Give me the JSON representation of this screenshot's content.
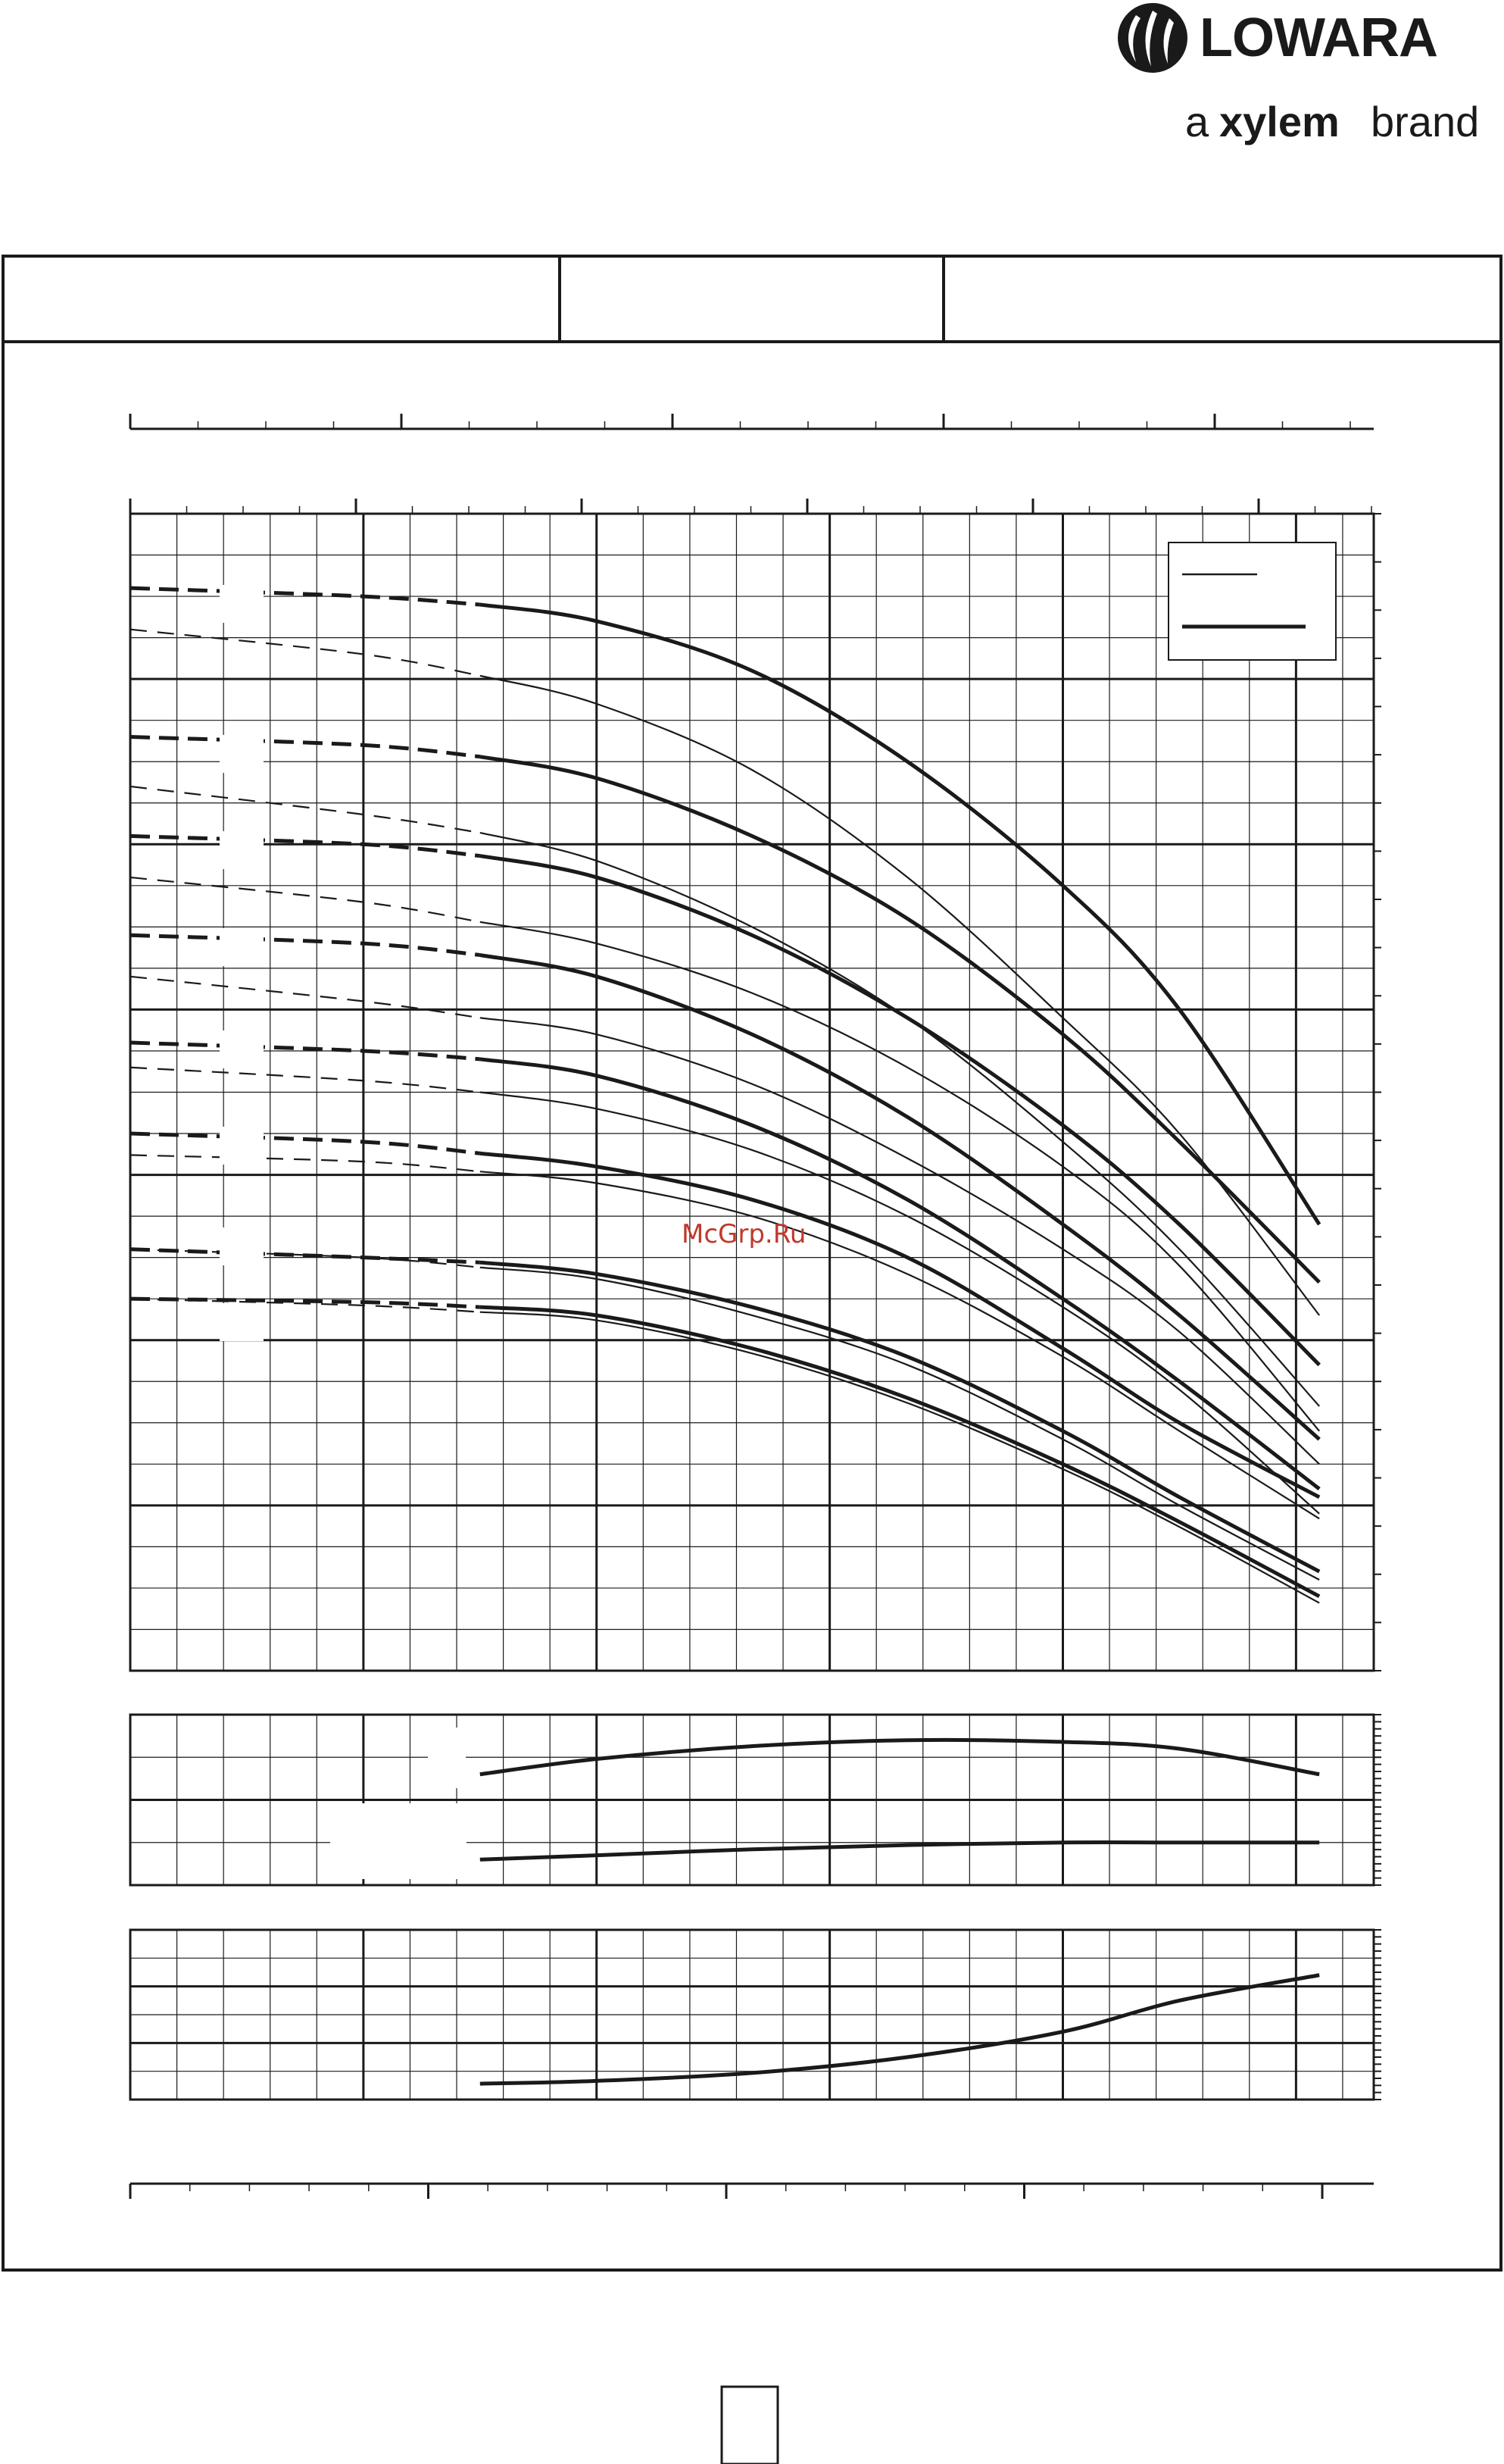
{
  "brand": {
    "name": "LOWARA",
    "tagline_prefix": "a",
    "tagline_brand": "xylem",
    "tagline_suffix": "brand"
  },
  "watermark": "McGrp.Ru",
  "colors": {
    "ink": "#1a1a1a",
    "watermark": "#c0392b",
    "paper": "#ffffff"
  },
  "chart_data": [
    {
      "type": "line",
      "title": "",
      "xlabel": "",
      "ylabel": "",
      "xlim": [
        0,
        16
      ],
      "ylim": [
        0,
        70
      ],
      "grid": true,
      "legend": "top-right",
      "series": [
        {
          "style": "bold",
          "x": [
            0,
            3,
            4.5,
            6,
            8,
            10,
            12,
            13.5,
            15.3
          ],
          "y": [
            65.5,
            65,
            64.5,
            63.5,
            60.5,
            55,
            47.5,
            40,
            27
          ]
        },
        {
          "style": "thin",
          "x": [
            0,
            3,
            4.5,
            6,
            8,
            10,
            12,
            13.5,
            15.3
          ],
          "y": [
            63,
            61.5,
            60.2,
            58.5,
            54.5,
            48,
            39.5,
            32.5,
            21.5
          ]
        },
        {
          "style": "bold",
          "x": [
            0,
            3,
            4.5,
            6,
            8,
            10,
            12,
            13.5,
            15.3
          ],
          "y": [
            56.5,
            56,
            55.3,
            54,
            50.5,
            45.5,
            38.5,
            32,
            23.5
          ]
        },
        {
          "style": "thin",
          "x": [
            0,
            3,
            4.5,
            6,
            8,
            10,
            12,
            13.5,
            15.3
          ],
          "y": [
            53.5,
            51.8,
            50.7,
            49,
            45,
            39.5,
            32,
            25.5,
            16
          ]
        },
        {
          "style": "bold",
          "x": [
            0,
            3,
            4.5,
            6,
            8,
            10,
            12,
            13.5,
            15.3
          ],
          "y": [
            50.5,
            50,
            49.3,
            48,
            44.5,
            39.5,
            33,
            27,
            18.5
          ]
        },
        {
          "style": "thin",
          "x": [
            0,
            3,
            4.5,
            6,
            8,
            10,
            12,
            13.5,
            15.3
          ],
          "y": [
            48,
            46.5,
            45.3,
            44,
            41,
            36.5,
            30.5,
            24.5,
            14.5
          ]
        },
        {
          "style": "bold",
          "x": [
            0,
            3,
            4.5,
            6,
            8,
            10,
            12,
            13.5,
            15.3
          ],
          "y": [
            44.5,
            44,
            43.3,
            42,
            38.5,
            33.5,
            27,
            21.5,
            14
          ]
        },
        {
          "style": "thin",
          "x": [
            0,
            3,
            4.5,
            6,
            8,
            10,
            12,
            13.5,
            15.3
          ],
          "y": [
            42,
            40.5,
            39.5,
            38.5,
            35.5,
            31,
            25.5,
            20.5,
            12.5
          ]
        },
        {
          "style": "bold",
          "x": [
            0,
            3,
            4.5,
            6,
            8,
            10,
            12,
            13.5,
            15.3
          ],
          "y": [
            38,
            37.5,
            37,
            36,
            33,
            28.5,
            22.5,
            17.5,
            11
          ]
        },
        {
          "style": "thin",
          "x": [
            0,
            3,
            4.5,
            6,
            8,
            10,
            12,
            13.5,
            15.3
          ],
          "y": [
            36.5,
            35.7,
            35,
            34,
            31.5,
            27.5,
            22,
            17,
            9.5
          ]
        },
        {
          "style": "bold",
          "x": [
            0,
            3,
            4.5,
            6,
            8,
            10,
            12,
            13.5,
            15.3
          ],
          "y": [
            32.5,
            32,
            31.3,
            30.5,
            28.5,
            25,
            19.5,
            15,
            10.5
          ]
        },
        {
          "style": "thin",
          "x": [
            0,
            3,
            4.5,
            6,
            8,
            10,
            12,
            13.5,
            15.3
          ],
          "y": [
            31.2,
            30.8,
            30.2,
            29.5,
            27.5,
            24,
            19,
            14.5,
            9.2
          ]
        },
        {
          "style": "bold",
          "x": [
            0,
            3,
            4.5,
            6,
            8,
            10,
            12,
            13.5,
            15.3
          ],
          "y": [
            25.5,
            25,
            24.7,
            24,
            22,
            19,
            14.5,
            10.5,
            6
          ]
        },
        {
          "style": "thin",
          "x": [
            0,
            3,
            4.5,
            6,
            8,
            10,
            12,
            13.5,
            15.3
          ],
          "y": [
            25.5,
            25,
            24.4,
            23.7,
            21.5,
            18.5,
            14,
            10,
            5.5
          ]
        },
        {
          "style": "bold",
          "x": [
            0,
            3,
            4.5,
            6,
            8,
            10,
            12,
            13.5,
            15.3
          ],
          "y": [
            22.5,
            22.3,
            22,
            21.5,
            19.5,
            16.5,
            12.5,
            9,
            4.5
          ]
        },
        {
          "style": "thin",
          "x": [
            0,
            3,
            4.5,
            6,
            8,
            10,
            12,
            13.5,
            15.3
          ],
          "y": [
            22.5,
            22.1,
            21.7,
            21.2,
            19.2,
            16.2,
            12.2,
            8.7,
            4.1
          ]
        }
      ]
    },
    {
      "type": "line",
      "title": "",
      "xlim": [
        0,
        16
      ],
      "ylim": [
        0,
        2
      ],
      "grid": true,
      "series": [
        {
          "style": "bold",
          "x": [
            4.5,
            6,
            8,
            10,
            12,
            13.5,
            15.3
          ],
          "y": [
            1.3,
            1.48,
            1.63,
            1.7,
            1.68,
            1.6,
            1.3
          ]
        },
        {
          "style": "bold",
          "x": [
            4.5,
            6,
            8,
            10,
            12,
            13.5,
            15.3
          ],
          "y": [
            0.3,
            0.35,
            0.42,
            0.47,
            0.5,
            0.5,
            0.5
          ]
        }
      ]
    },
    {
      "type": "line",
      "title": "",
      "xlim": [
        0,
        16
      ],
      "ylim": [
        0,
        3
      ],
      "grid": true,
      "series": [
        {
          "style": "bold",
          "x": [
            4.5,
            6,
            8,
            10,
            12,
            13.5,
            15.3
          ],
          "y": [
            0.28,
            0.33,
            0.47,
            0.75,
            1.2,
            1.75,
            2.2
          ]
        }
      ]
    }
  ]
}
